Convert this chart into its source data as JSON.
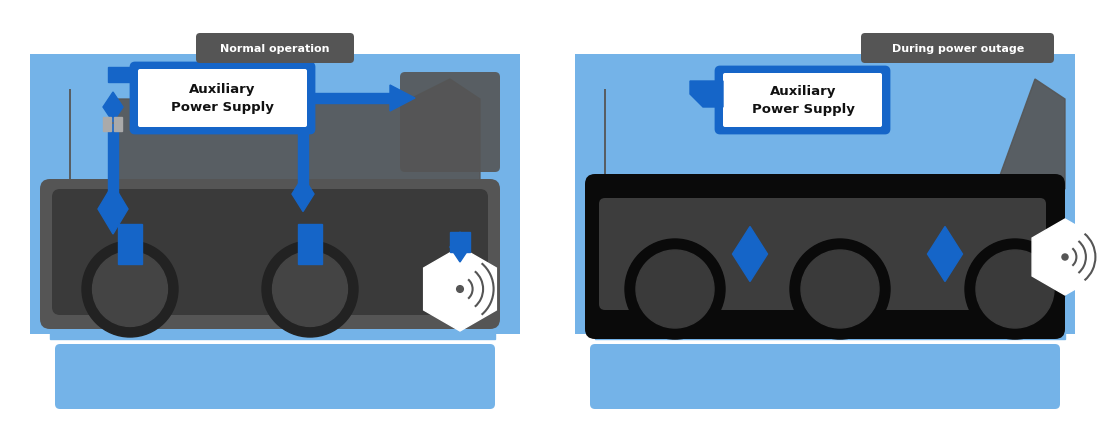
{
  "bg_color": "#ffffff",
  "sky_blue": "#74b3e8",
  "dark_blue": "#1565c8",
  "body_dark": "#555555",
  "body_darker": "#3a3a3a",
  "wheel_dark": "#222222",
  "wheel_mid": "#444444",
  "black": "#111111",
  "white": "#ffffff",
  "label1": "Auxiliary\nPower Supply",
  "label2": "Auxiliary\nPower Supply",
  "title_left": "Normal operation",
  "title_right": "During power outage",
  "title_bg": "#555555"
}
